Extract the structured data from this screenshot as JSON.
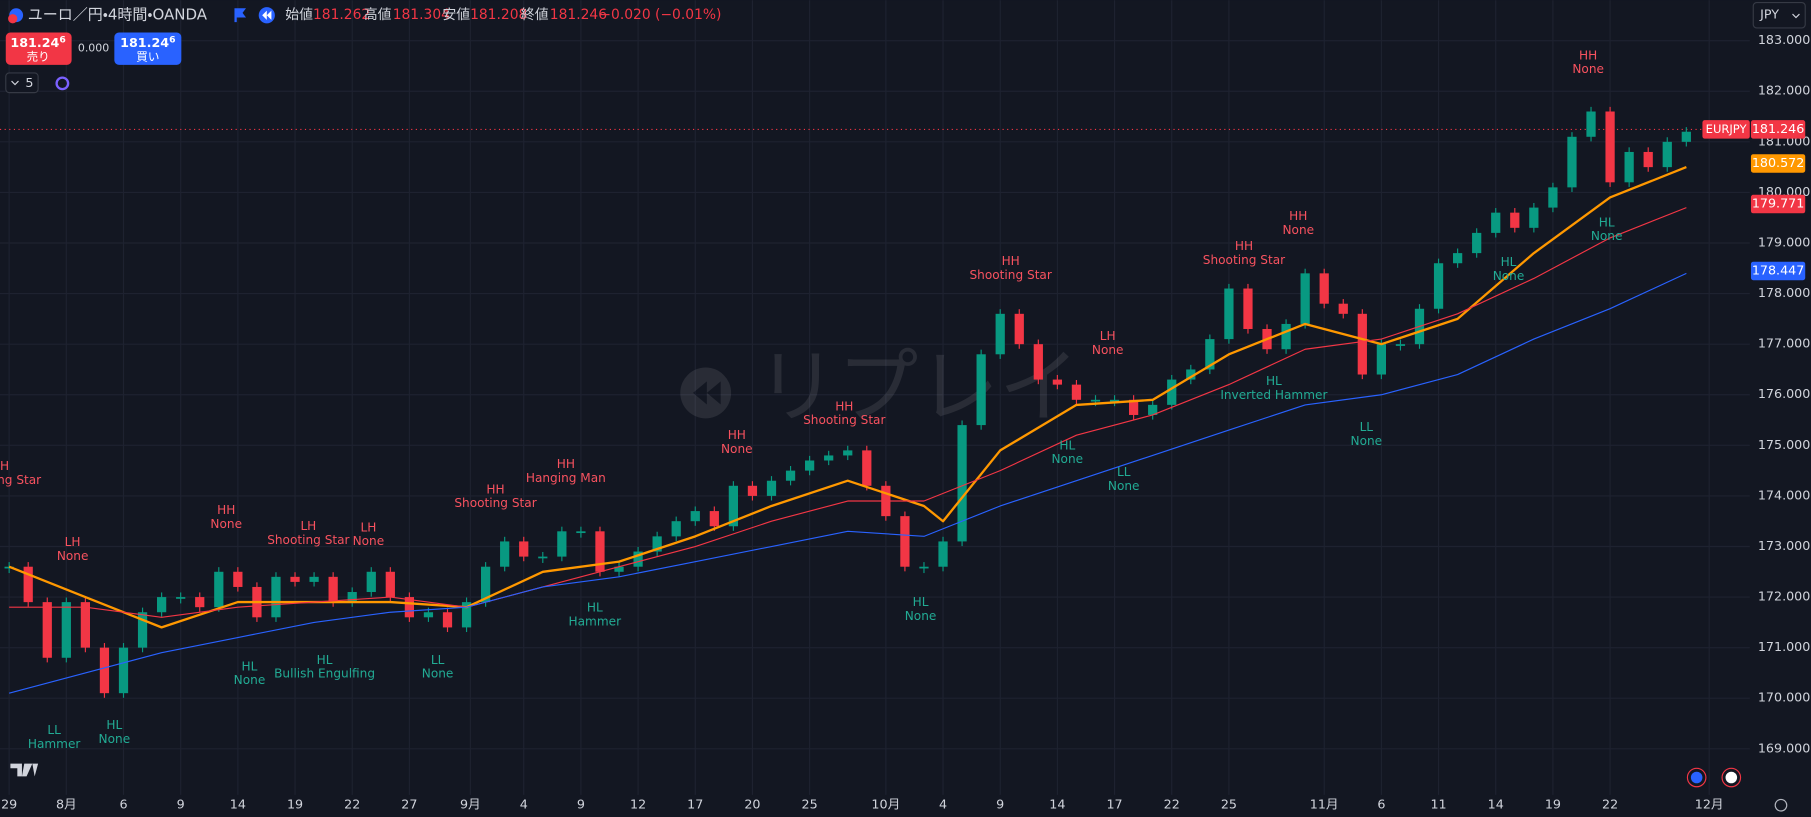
{
  "header": {
    "symbol": "ユーロ／円・4時間・OANDA",
    "ohlc": [
      {
        "label": "始値",
        "value": "181.262"
      },
      {
        "label": "高値",
        "value": "181.304"
      },
      {
        "label": "安値",
        "value": "181.208"
      },
      {
        "label": "終値",
        "value": "181.246"
      }
    ],
    "change": "−0.020 (−0.01%)"
  },
  "trade": {
    "sell_price": "181.24",
    "sell_price_sup": "6",
    "sell_label": "売り",
    "spread": "0.000",
    "buy_price": "181.24",
    "buy_price_sup": "6",
    "buy_label": "買い"
  },
  "indicators_count": "5",
  "currency": "JPY",
  "watermark": "リプレイ",
  "chart_data": {
    "type": "line",
    "xlim": [
      -0.48,
      91.33
    ],
    "ylim": [
      168.09,
      183.8
    ],
    "xticks": [
      {
        "value": 0,
        "label": "29"
      },
      {
        "value": 3,
        "label": "8月"
      },
      {
        "value": 6,
        "label": "6"
      },
      {
        "value": 9,
        "label": "9"
      },
      {
        "value": 12,
        "label": "14"
      },
      {
        "value": 15,
        "label": "19"
      },
      {
        "value": 18,
        "label": "22"
      },
      {
        "value": 21,
        "label": "27"
      },
      {
        "value": 24.2,
        "label": "9月"
      },
      {
        "value": 27,
        "label": "4"
      },
      {
        "value": 30,
        "label": "9"
      },
      {
        "value": 33,
        "label": "12"
      },
      {
        "value": 36,
        "label": "17"
      },
      {
        "value": 39,
        "label": "20"
      },
      {
        "value": 42,
        "label": "25"
      },
      {
        "value": 46,
        "label": "10月"
      },
      {
        "value": 49,
        "label": "4"
      },
      {
        "value": 52,
        "label": "9"
      },
      {
        "value": 55,
        "label": "14"
      },
      {
        "value": 58,
        "label": "17"
      },
      {
        "value": 61,
        "label": "22"
      },
      {
        "value": 64,
        "label": "25"
      },
      {
        "value": 69,
        "label": "11月"
      },
      {
        "value": 72,
        "label": "6"
      },
      {
        "value": 75,
        "label": "11"
      },
      {
        "value": 78,
        "label": "14"
      },
      {
        "value": 81,
        "label": "19"
      },
      {
        "value": 84,
        "label": "22"
      },
      {
        "value": 89.2,
        "label": "12月"
      }
    ],
    "yticks": [
      {
        "value": 169,
        "label": "169.000"
      },
      {
        "value": 170,
        "label": "170.000"
      },
      {
        "value": 171,
        "label": "171.000"
      },
      {
        "value": 172,
        "label": "172.000"
      },
      {
        "value": 173,
        "label": "173.000"
      },
      {
        "value": 174,
        "label": "174.000"
      },
      {
        "value": 175,
        "label": "175.000"
      },
      {
        "value": 176,
        "label": "176.000"
      },
      {
        "value": 177,
        "label": "177.000"
      },
      {
        "value": 178,
        "label": "178.000"
      },
      {
        "value": 179,
        "label": "179.000"
      },
      {
        "value": 180,
        "label": "180.000"
      },
      {
        "value": 181,
        "label": "181.000"
      },
      {
        "value": 182,
        "label": "182.000"
      },
      {
        "value": 183,
        "label": "183.000"
      }
    ],
    "grid": true,
    "series": [
      {
        "name": "EURJPY",
        "style": "candles",
        "up_color": "#089981",
        "down_color": "#f23645",
        "x": [
          0,
          1,
          2,
          3,
          4,
          5,
          6,
          7,
          8,
          9,
          10,
          11,
          12,
          13,
          14,
          15,
          16,
          17,
          18,
          19,
          20,
          21,
          22,
          23,
          24,
          25,
          26,
          27,
          28,
          29,
          30,
          31,
          32,
          33,
          34,
          35,
          36,
          37,
          38,
          39,
          40,
          41,
          42,
          43,
          44,
          45,
          46,
          47,
          48,
          49,
          50,
          51,
          52,
          53,
          54,
          55,
          56,
          57,
          58,
          59,
          60,
          61,
          62,
          63,
          64,
          65,
          66,
          67,
          68,
          69,
          70,
          71,
          72,
          73,
          74,
          75,
          76,
          77,
          78,
          79,
          80,
          81,
          82,
          83,
          84,
          85,
          86,
          87,
          88
        ],
        "values": [
          172.6,
          171.9,
          170.8,
          171.9,
          171.0,
          170.1,
          171.0,
          171.7,
          172.0,
          172.0,
          171.8,
          172.5,
          172.2,
          171.6,
          172.4,
          172.3,
          172.4,
          171.9,
          172.1,
          172.5,
          172.0,
          171.6,
          171.7,
          171.4,
          171.9,
          172.6,
          173.1,
          172.8,
          172.8,
          173.3,
          173.3,
          172.5,
          172.6,
          172.9,
          173.2,
          173.5,
          173.7,
          173.4,
          174.2,
          174.0,
          174.3,
          174.5,
          174.7,
          174.8,
          174.9,
          174.2,
          173.6,
          172.6,
          172.6,
          173.1,
          175.4,
          176.8,
          177.6,
          177.0,
          176.3,
          176.2,
          175.9,
          175.9,
          175.9,
          175.6,
          175.8,
          176.3,
          176.5,
          177.1,
          178.1,
          177.3,
          176.9,
          177.4,
          178.4,
          177.8,
          177.6,
          176.4,
          177.0,
          177.0,
          177.7,
          178.6,
          178.8,
          179.2,
          179.6,
          179.3,
          179.7,
          180.1,
          181.1,
          181.6,
          180.2,
          180.8,
          180.5,
          181.0,
          181.2
        ]
      },
      {
        "color": "#ff9800",
        "width": 2,
        "x": [
          0,
          4,
          8,
          12,
          16,
          20,
          24,
          28,
          32,
          36,
          40,
          44,
          48,
          49,
          52,
          56,
          60,
          64,
          68,
          72,
          76,
          80,
          84,
          88
        ],
        "values": [
          172.6,
          172.0,
          171.4,
          171.9,
          171.9,
          171.9,
          171.8,
          172.5,
          172.7,
          173.2,
          173.8,
          174.3,
          173.8,
          173.5,
          174.9,
          175.8,
          175.9,
          176.8,
          177.4,
          177.0,
          177.5,
          178.8,
          179.9,
          180.5
        ]
      },
      {
        "color": "#f23645",
        "width": 1,
        "x": [
          0,
          4,
          8,
          12,
          16,
          20,
          24,
          28,
          32,
          36,
          40,
          44,
          48,
          52,
          56,
          60,
          64,
          68,
          72,
          76,
          80,
          84,
          88
        ],
        "values": [
          171.8,
          171.8,
          171.6,
          171.8,
          171.9,
          172.0,
          171.8,
          172.2,
          172.6,
          173.0,
          173.5,
          173.9,
          173.9,
          174.5,
          175.2,
          175.6,
          176.2,
          176.9,
          177.1,
          177.6,
          178.3,
          179.1,
          179.7
        ]
      },
      {
        "color": "#2962ff",
        "width": 1,
        "x": [
          0,
          4,
          8,
          12,
          16,
          20,
          24,
          28,
          32,
          36,
          40,
          44,
          48,
          52,
          56,
          60,
          64,
          68,
          72,
          76,
          80,
          84,
          88
        ],
        "values": [
          170.1,
          170.5,
          170.9,
          171.2,
          171.5,
          171.7,
          171.8,
          172.2,
          172.4,
          172.7,
          173.0,
          173.3,
          173.2,
          173.8,
          174.3,
          174.8,
          175.3,
          175.8,
          176.0,
          176.4,
          177.1,
          177.7,
          178.4
        ]
      }
    ],
    "price_badges": [
      {
        "value": 181.246,
        "color": "#f23645"
      },
      {
        "value": 180.572,
        "color": "#ff9800"
      },
      {
        "value": 179.771,
        "color": "#f23645"
      },
      {
        "value": 178.447,
        "color": "#2962ff"
      }
    ],
    "annotations": [
      {
        "x": -0.48,
        "price": 174.58,
        "texts": [
          "HH",
          "Shooting Star"
        ],
        "color": "#f7525f"
      },
      {
        "x": 3.33,
        "price": 173.08,
        "texts": [
          "LH",
          "None"
        ],
        "color": "#f7525f"
      },
      {
        "x": 11.39,
        "price": 173.71,
        "texts": [
          "HH",
          "None"
        ],
        "color": "#f7525f"
      },
      {
        "x": 15.7,
        "price": 173.39,
        "texts": [
          "LH",
          "Shooting Star"
        ],
        "color": "#f7525f"
      },
      {
        "x": 18.85,
        "price": 173.37,
        "texts": [
          "LH",
          "None"
        ],
        "color": "#f7525f"
      },
      {
        "x": 25.52,
        "price": 174.12,
        "texts": [
          "HH",
          "Shooting Star"
        ],
        "color": "#f7525f"
      },
      {
        "x": 29.21,
        "price": 174.62,
        "texts": [
          "HH",
          "Hanging Man"
        ],
        "color": "#f7525f"
      },
      {
        "x": 38.18,
        "price": 175.19,
        "texts": [
          "HH",
          "None"
        ],
        "color": "#f7525f"
      },
      {
        "x": 43.82,
        "price": 175.76,
        "texts": [
          "HH",
          "Shooting Star"
        ],
        "color": "#f7525f"
      },
      {
        "x": 52.55,
        "price": 178.63,
        "texts": [
          "HH",
          "Shooting Star"
        ],
        "color": "#f7525f"
      },
      {
        "x": 57.64,
        "price": 177.15,
        "texts": [
          "LH",
          "None"
        ],
        "color": "#f7525f"
      },
      {
        "x": 64.79,
        "price": 178.93,
        "texts": [
          "HH",
          "Shooting Star"
        ],
        "color": "#f7525f"
      },
      {
        "x": 67.64,
        "price": 179.52,
        "texts": [
          "HH",
          "None"
        ],
        "color": "#f7525f"
      },
      {
        "x": 82.85,
        "price": 182.7,
        "texts": [
          "HH",
          "None"
        ],
        "color": "#f7525f"
      },
      {
        "x": 2.36,
        "price": 169.36,
        "texts": [
          "LL",
          "Hammer"
        ],
        "color": "#22ab94"
      },
      {
        "x": 5.52,
        "price": 169.46,
        "texts": [
          "HL",
          "None"
        ],
        "color": "#22ab94"
      },
      {
        "x": 12.61,
        "price": 170.62,
        "texts": [
          "HL",
          "None"
        ],
        "color": "#22ab94"
      },
      {
        "x": 16.55,
        "price": 170.75,
        "texts": [
          "HL",
          "Bullish Engulfing"
        ],
        "color": "#22ab94"
      },
      {
        "x": 22.48,
        "price": 170.75,
        "texts": [
          "LL",
          "None"
        ],
        "color": "#22ab94"
      },
      {
        "x": 30.73,
        "price": 171.78,
        "texts": [
          "HL",
          "Hammer"
        ],
        "color": "#22ab94"
      },
      {
        "x": 47.82,
        "price": 171.89,
        "texts": [
          "HL",
          "None"
        ],
        "color": "#22ab94"
      },
      {
        "x": 55.52,
        "price": 174.99,
        "texts": [
          "HL",
          "None"
        ],
        "color": "#22ab94"
      },
      {
        "x": 58.48,
        "price": 174.46,
        "texts": [
          "LL",
          "None"
        ],
        "color": "#22ab94"
      },
      {
        "x": 66.36,
        "price": 176.26,
        "texts": [
          "HL",
          "Inverted Hammer"
        ],
        "color": "#22ab94"
      },
      {
        "x": 71.21,
        "price": 175.35,
        "texts": [
          "LL",
          "None"
        ],
        "color": "#22ab94"
      },
      {
        "x": 78.67,
        "price": 178.61,
        "texts": [
          "HL",
          "None"
        ],
        "color": "#22ab94"
      },
      {
        "x": 83.82,
        "price": 179.4,
        "texts": [
          "HL",
          "None"
        ],
        "color": "#22ab94"
      }
    ]
  }
}
